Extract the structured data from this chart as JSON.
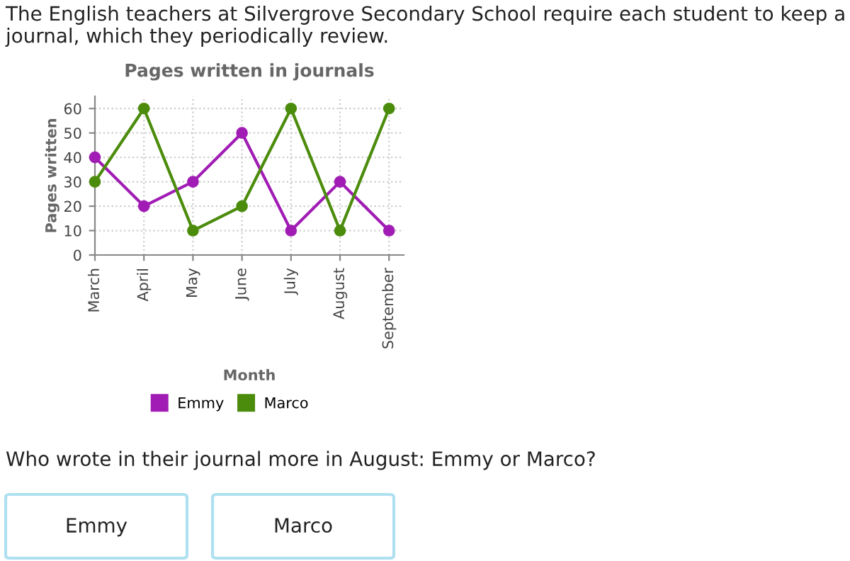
{
  "chart_data": {
    "type": "line",
    "title": "Pages written in journals",
    "xlabel": "Month",
    "ylabel": "Pages written",
    "categories": [
      "March",
      "April",
      "May",
      "June",
      "July",
      "August",
      "September"
    ],
    "series": [
      {
        "name": "Emmy",
        "color": "#a01cb4",
        "values": [
          40,
          20,
          30,
          50,
          10,
          30,
          10
        ]
      },
      {
        "name": "Marco",
        "color": "#4c8c0c",
        "values": [
          30,
          60,
          10,
          20,
          60,
          10,
          60
        ]
      }
    ],
    "ylim": [
      0,
      65
    ],
    "yticks": [
      0,
      10,
      20,
      30,
      40,
      50,
      60
    ],
    "grid": true,
    "legend": "bottom",
    "marker": "circle",
    "line_style": "solid",
    "annotations": [
      "The English teachers at Silvergrove Secondary School require each student to keep a journal, which they periodically review.",
      "Who wrote in their journal more in August: Emmy or Marco?",
      "Emmy",
      "Marco"
    ]
  }
}
